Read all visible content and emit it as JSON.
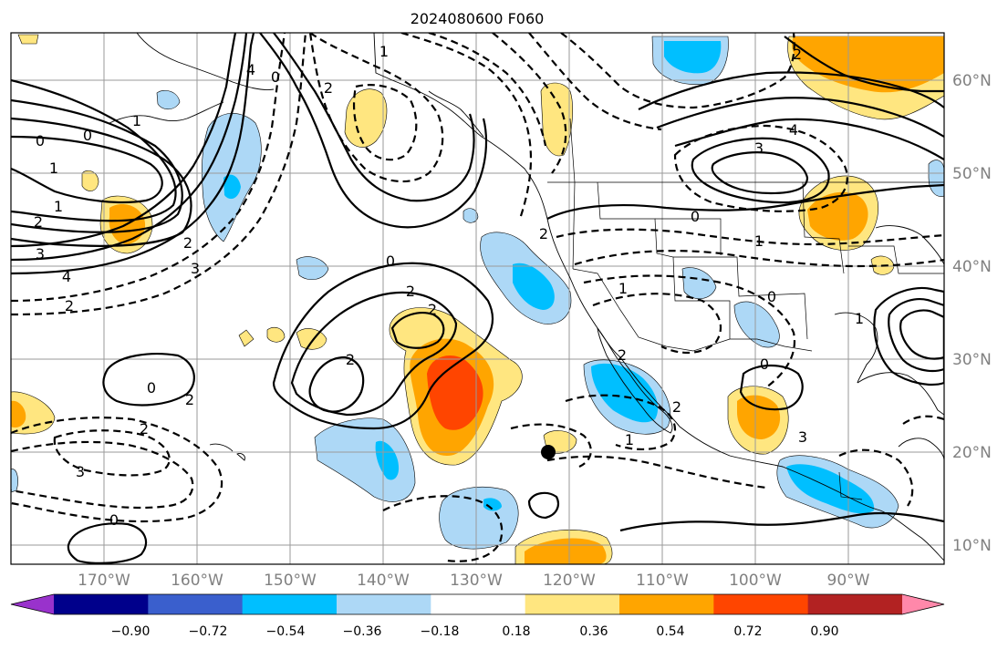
{
  "title": "2024080600 F060",
  "map": {
    "lon_ticks": [
      "170°W",
      "160°W",
      "150°W",
      "140°W",
      "130°W",
      "120°W",
      "110°W",
      "100°W",
      "90°W"
    ],
    "lat_ticks": [
      "60°N",
      "50°N",
      "40°N",
      "30°N",
      "20°N",
      "10°N"
    ],
    "point_marker": "black-dot"
  },
  "colorbar": {
    "colors": [
      "#9932cc",
      "#00008b",
      "#3a5fcd",
      "#00bfff",
      "#add8f6",
      "#ffffff",
      "#ffe680",
      "#ffa500",
      "#ff4500",
      "#b22222",
      "#ff88aa"
    ],
    "labels": [
      "−0.90",
      "−0.72",
      "−0.54",
      "−0.36",
      "−0.18",
      "0.18",
      "0.36",
      "0.54",
      "0.72",
      "0.90"
    ]
  },
  "contour_labels": [
    "0",
    "1",
    "2",
    "3",
    "4",
    "2",
    "1",
    "0",
    "1",
    "2",
    "3",
    "4",
    "0",
    "2",
    "1",
    "0",
    "2",
    "2",
    "2",
    "0",
    "2",
    "2",
    "3",
    "0",
    "2",
    "1",
    "0",
    "1",
    "0",
    "2",
    "1",
    "2",
    "0",
    "3",
    "3",
    "4",
    "2",
    "1"
  ]
}
